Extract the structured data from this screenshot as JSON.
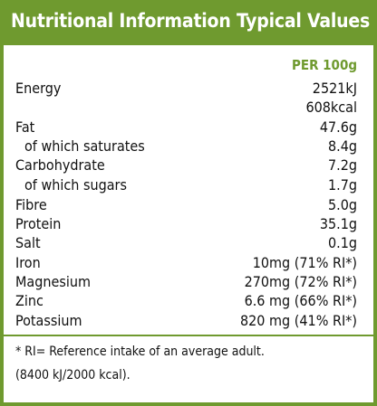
{
  "header": {
    "title": "Nutritional Information Typical Values"
  },
  "column_header": "PER 100g",
  "nutrients": [
    {
      "label": "Energy",
      "value": "2521kJ",
      "indent": false
    },
    {
      "label": "",
      "value": "608kcal",
      "indent": false
    },
    {
      "label": "Fat",
      "value": "47.6g",
      "indent": false
    },
    {
      "label": "of which saturates",
      "value": "8.4g",
      "indent": true
    },
    {
      "label": "Carbohydrate",
      "value": "7.2g",
      "indent": false
    },
    {
      "label": "of which sugars",
      "value": "1.7g",
      "indent": true
    },
    {
      "label": "Fibre",
      "value": "5.0g",
      "indent": false
    },
    {
      "label": "Protein",
      "value": "35.1g",
      "indent": false
    },
    {
      "label": "Salt",
      "value": "0.1g",
      "indent": false
    },
    {
      "label": "Iron",
      "value": "10mg (71% RI*)",
      "indent": false
    },
    {
      "label": "Magnesium",
      "value": "270mg (72% RI*)",
      "indent": false
    },
    {
      "label": "Zinc",
      "value": "6.6 mg (66% RI*)",
      "indent": false
    },
    {
      "label": "Potassium",
      "value": "820 mg (41% RI*)",
      "indent": false
    }
  ],
  "footnote": {
    "line1": "* RI= Reference intake of an average adult.",
    "line2": "(8400 kJ/2000 kcal)."
  },
  "colors": {
    "accent": "#6f9a2f",
    "text": "#111111",
    "background": "#ffffff"
  }
}
